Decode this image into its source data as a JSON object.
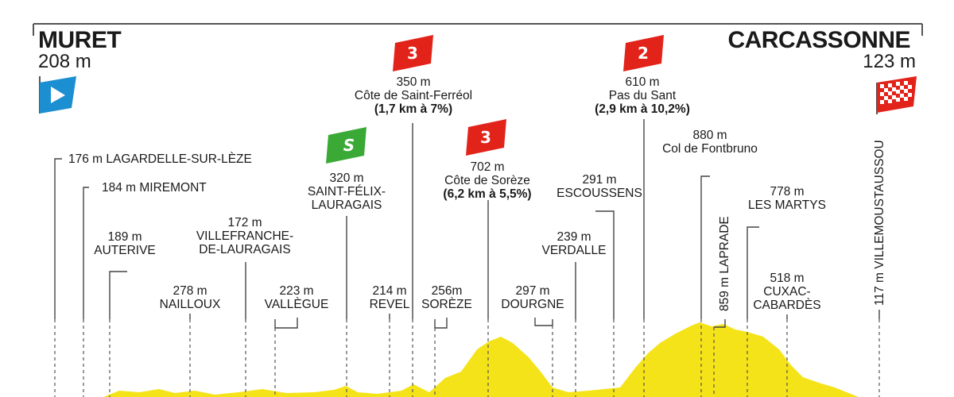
{
  "start": {
    "name": "MURET",
    "altitude": "208 m"
  },
  "finish": {
    "name": "CARCASSONNE",
    "altitude": "123 m"
  },
  "climbs": [
    {
      "category": "3",
      "altitude": "350 m",
      "name": "Côte de Saint-Ferréol",
      "detail": "(1,7 km à 7%)"
    },
    {
      "category": "3",
      "altitude": "702 m",
      "name": "Côte de Sorèze",
      "detail": "(6,2 km à 5,5%)"
    },
    {
      "category": "2",
      "altitude": "610 m",
      "name": "Pas du Sant",
      "detail": "(2,9 km à 10,2%)"
    }
  ],
  "sprint": {
    "badge": "S",
    "altitude": "320 m",
    "name1": "SAINT-FÉLIX-",
    "name2": "LAURAGAIS"
  },
  "places": {
    "lagardelle": "176 m LAGARDELLE-SUR-LÈZE",
    "miremont": "184 m MIREMONT",
    "auterive_alt": "189 m",
    "auterive": "AUTERIVE",
    "villefranche_alt": "172 m",
    "villefranche1": "VILLEFRANCHE-",
    "villefranche2": "DE-LAURAGAIS",
    "nailloux_alt": "278 m",
    "nailloux": "NAILLOUX",
    "vallegue_alt": "223 m",
    "vallegue": "VALLÈGUE",
    "revel_alt": "214 m",
    "revel": "REVEL",
    "soreze_alt": "256m",
    "soreze": "SORÈZE",
    "dourgne_alt": "297 m",
    "dourgne": "DOURGNE",
    "verdalle_alt": "239 m",
    "verdalle": "VERDALLE",
    "escoussens_alt": "291 m",
    "escoussens": "ESCOUSSENS",
    "fontbruno_alt": "880 m",
    "fontbruno": "Col de Fontbruno",
    "laprade": "859 m LAPRADE",
    "martys_alt": "778 m",
    "martys": "LES MARTYS",
    "cuxac_alt": "518 m",
    "cuxac1": "CUXAC-",
    "cuxac2": "CABARDÈS",
    "villemoustaussou": "117 m VILLEMOUSTAUSSOU"
  },
  "colors": {
    "profile": "#f5e31a",
    "climb_badge": "#e2231a",
    "sprint_badge": "#3aa935",
    "start_flag": "#1b8fd1",
    "finish_flag": "#e2231a"
  },
  "icons": {
    "start": "play-flag-icon",
    "finish": "checkered-flag-icon"
  },
  "chart_data": {
    "type": "area",
    "xlabel": "",
    "ylabel": "",
    "elevation_profile_m": [
      208,
      176,
      184,
      189,
      278,
      172,
      223,
      320,
      214,
      350,
      256,
      702,
      297,
      239,
      291,
      610,
      880,
      859,
      778,
      518,
      117,
      123
    ]
  }
}
